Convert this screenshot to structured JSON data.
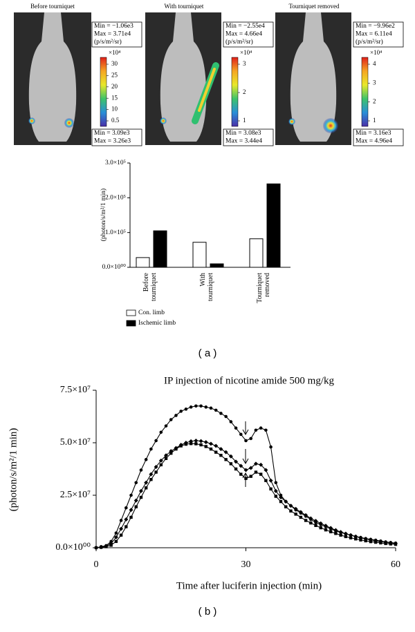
{
  "imaging_panels": [
    {
      "title": "Before tourniquet",
      "roi_top": [
        "Min = −1.06e3",
        "Max = 3.71e4",
        "(p/s/m²/sr)"
      ],
      "scale_factor": "×10⁴",
      "scale_labels": [
        "30",
        "25",
        "20",
        "15",
        "10",
        "0.5"
      ],
      "roi_bottom": [
        "Min = 3.09e3",
        "Max = 3.26e3"
      ]
    },
    {
      "title": "With tourniquet",
      "roi_top": [
        "Min = −2.55e4",
        "Max = 4.66e4",
        "(p/s/m²/sr)"
      ],
      "scale_factor": "×10⁴",
      "scale_labels": [
        "3",
        "2",
        "1"
      ],
      "roi_bottom": [
        "Min = 3.08e3",
        "Max = 3.44e4"
      ]
    },
    {
      "title": "Tourniquet removed",
      "roi_top": [
        "Min = −9.96e2",
        "Max = 6.11e4",
        "(p/s/m²/sr)"
      ],
      "scale_factor": "×10⁴",
      "scale_labels": [
        "4",
        "3",
        "2",
        "1"
      ],
      "roi_bottom": [
        "Min = 3.16e3",
        "Max = 4.96e4"
      ]
    }
  ],
  "panel_labels": [
    "( a )",
    "( b )"
  ],
  "chart_data": [
    {
      "type": "bar",
      "y_label": "(photon/s/m²/1 min)",
      "categories": [
        "Before tourniquet",
        "With tourniquet",
        "Tourniquet removed"
      ],
      "series": [
        {
          "name": "Con. limb",
          "color": "#ffffff",
          "values": [
            28000,
            72000,
            82000
          ]
        },
        {
          "name": "Ischemic limb",
          "color": "#000000",
          "values": [
            105000,
            10000,
            240000
          ]
        }
      ],
      "ylim": [
        0,
        300000
      ],
      "yticks": [
        {
          "value": 0,
          "label": "0.0×10⁰⁰"
        },
        {
          "value": 100000,
          "label": "1.0×10⁵"
        },
        {
          "value": 200000,
          "label": "2.0×10⁵"
        },
        {
          "value": 300000,
          "label": "3.0×10⁵"
        }
      ]
    },
    {
      "type": "line",
      "title": "IP injection of nicotine amide 500 mg/kg",
      "x_label": "Time after luciferin injection (min)",
      "y_label": "(photon/s/m²/1 min)",
      "x": [
        0,
        1,
        2,
        3,
        4,
        5,
        6,
        7,
        8,
        9,
        10,
        11,
        12,
        13,
        14,
        15,
        16,
        17,
        18,
        19,
        20,
        21,
        22,
        23,
        24,
        25,
        26,
        27,
        28,
        29,
        30,
        31,
        32,
        33,
        34,
        35,
        36,
        37,
        38,
        39,
        40,
        41,
        42,
        43,
        44,
        45,
        46,
        47,
        48,
        49,
        50,
        51,
        52,
        53,
        54,
        55,
        56,
        57,
        58,
        59,
        60
      ],
      "series": [
        {
          "color": "#000000",
          "marker": "circle",
          "values": [
            0,
            500000.0,
            1000000.0,
            3000000.0,
            7000000.0,
            13000000.0,
            19000000.0,
            25000000.0,
            31000000.0,
            37000000.0,
            42000000.0,
            47000000.0,
            51000000.0,
            55000000.0,
            58000000.0,
            61000000.0,
            63000000.0,
            65000000.0,
            66000000.0,
            67000000.0,
            67500000.0,
            67500000.0,
            67000000.0,
            66500000.0,
            65500000.0,
            64000000.0,
            62500000.0,
            60000000.0,
            57000000.0,
            54000000.0,
            51000000.0,
            52000000.0,
            56000000.0,
            57000000.0,
            56000000.0,
            48000000.0,
            31000000.0,
            25000000.0,
            22000000.0,
            20000000.0,
            18000000.0,
            16500000.0,
            15000000.0,
            13500000.0,
            12000000.0,
            11000000.0,
            10000000.0,
            9000000.0,
            8000000.0,
            7300000.0,
            6600000.0,
            6000000.0,
            5400000.0,
            4900000.0,
            4400000.0,
            4000000.0,
            3600000.0,
            3200000.0,
            2800000.0,
            2500000.0,
            2200000.0
          ]
        },
        {
          "color": "#000000",
          "marker": "diamond",
          "values": [
            0,
            300000.0,
            800000.0,
            2000000.0,
            5000000.0,
            9000000.0,
            13500000.0,
            18000000.0,
            22500000.0,
            27000000.0,
            31000000.0,
            35000000.0,
            38500000.0,
            41500000.0,
            44000000.0,
            46000000.0,
            47500000.0,
            49000000.0,
            50000000.0,
            50700000.0,
            51000000.0,
            50800000.0,
            50300000.0,
            49500000.0,
            48500000.0,
            47000000.0,
            45500000.0,
            43500000.0,
            41000000.0,
            39000000.0,
            37000000.0,
            38000000.0,
            40000000.0,
            39500000.0,
            37000000.0,
            32000000.0,
            27000000.0,
            24000000.0,
            22000000.0,
            20000000.0,
            18500000.0,
            17000000.0,
            15500000.0,
            14000000.0,
            12800000.0,
            11600000.0,
            10500000.0,
            9400000.0,
            8400000.0,
            7500000.0,
            6700000.0,
            6000000.0,
            5300000.0,
            4700000.0,
            4200000.0,
            3700000.0,
            3300000.0,
            2900000.0,
            2600000.0,
            2300000.0,
            2000000.0
          ]
        },
        {
          "color": "#000000",
          "marker": "square",
          "values": [
            0,
            200000.0,
            500000.0,
            1200000.0,
            3000000.0,
            6000000.0,
            10000000.0,
            14500000.0,
            19500000.0,
            24000000.0,
            28500000.0,
            32500000.0,
            36000000.0,
            39500000.0,
            42500000.0,
            45000000.0,
            47000000.0,
            48500000.0,
            49300000.0,
            49600000.0,
            49500000.0,
            49000000.0,
            48200000.0,
            47000000.0,
            45500000.0,
            44000000.0,
            42000000.0,
            40000000.0,
            37500000.0,
            35000000.0,
            33000000.0,
            34000000.0,
            36000000.0,
            35000000.0,
            32000000.0,
            28000000.0,
            24500000.0,
            22000000.0,
            19500000.0,
            17500000.0,
            16000000.0,
            14500000.0,
            13000000.0,
            11800000.0,
            10600000.0,
            9500000.0,
            8500000.0,
            7600000.0,
            6800000.0,
            6000000.0,
            5300000.0,
            4700000.0,
            4200000.0,
            3700000.0,
            3300000.0,
            2900000.0,
            2600000.0,
            2300000.0,
            2000000.0,
            1800000.0,
            1600000.0
          ]
        }
      ],
      "xlim": [
        0,
        60
      ],
      "xticks": [
        0,
        30,
        60
      ],
      "ylim": [
        0,
        75000000
      ],
      "yticks": [
        {
          "value": 0,
          "label": "0.0×10⁰⁰"
        },
        {
          "value": 25000000,
          "label": "2.5×10⁷"
        },
        {
          "value": 50000000,
          "label": "5.0×10⁷"
        },
        {
          "value": 75000000,
          "label": "7.5×10⁷"
        }
      ]
    }
  ]
}
